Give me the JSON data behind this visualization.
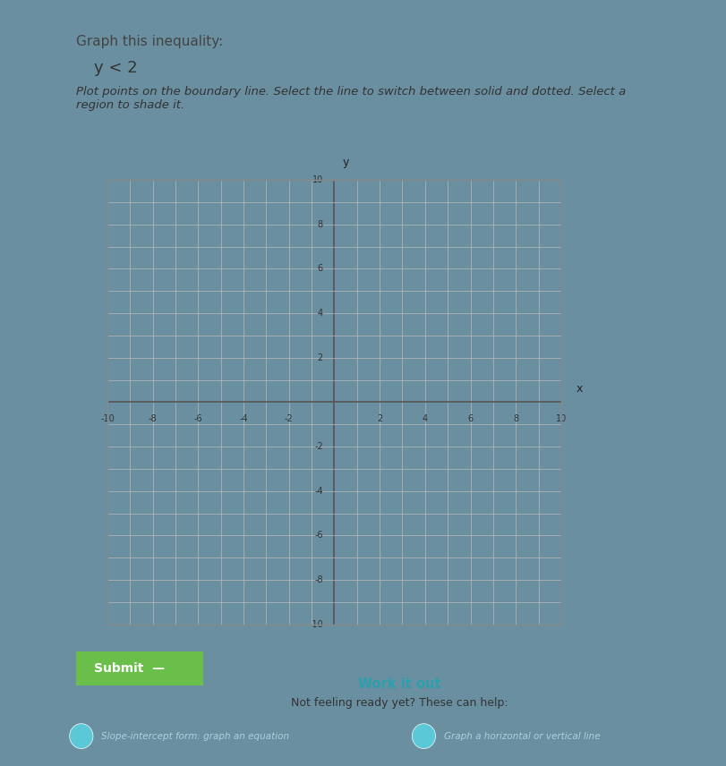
{
  "title": "Graph this inequality:",
  "inequality": "y < 2",
  "instruction": "Plot points on the boundary line. Select the line to switch between solid and dotted. Select a\nregion to shade it.",
  "xlim": [
    -10,
    10
  ],
  "ylim": [
    -10,
    10
  ],
  "x_ticks": [
    -10,
    -8,
    -6,
    -4,
    -2,
    2,
    4,
    6,
    8,
    10
  ],
  "y_ticks": [
    -10,
    -8,
    -6,
    -4,
    -2,
    2,
    4,
    6,
    8,
    10
  ],
  "boundary_y": 2,
  "bg_color": "#e8e8e8",
  "grid_color": "#b0b0b0",
  "axis_color": "#222222",
  "panel_bg": "#f0eeeb",
  "sidebar_color": "#7ab5c8",
  "footer_bg": "#4a7a8a",
  "footer_link_color": "#a8d4dc",
  "submit_button_color": "#6abf4b",
  "submit_text": "Submit  —",
  "workitout_text": "Work it out",
  "helptext": "Not feeling ready yet? These can help:",
  "link1": "Slope-intercept form: graph an equation",
  "link2": "Graph a horizontal or vertical line",
  "x_label": "x",
  "y_label": "y",
  "top_bg": "#6a8fa0",
  "graph_border_color": "#999999"
}
